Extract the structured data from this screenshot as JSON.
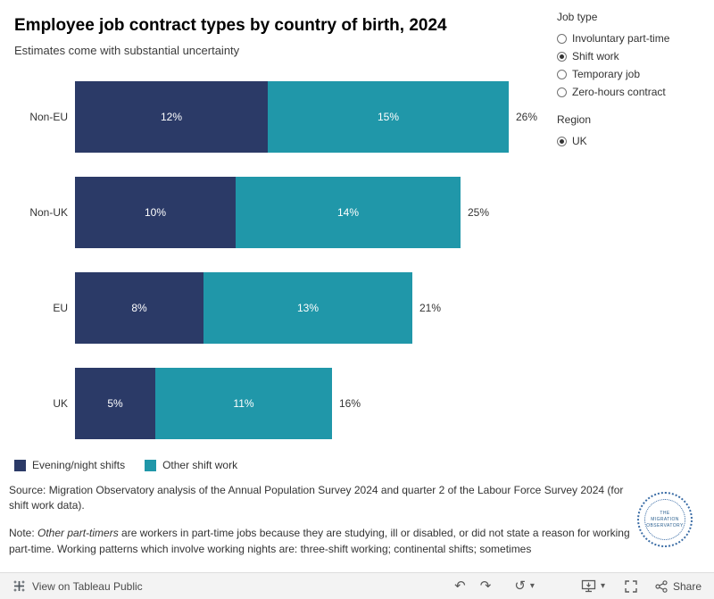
{
  "header": {
    "title": "Employee job contract types by country of birth, 2024",
    "subtitle": "Estimates come with substantial uncertainty"
  },
  "chart_data": {
    "type": "bar",
    "orientation": "horizontal",
    "title": "Employee job contract types by country of birth, 2024",
    "categories": [
      "Non-EU",
      "Non-UK",
      "EU",
      "UK"
    ],
    "series": [
      {
        "name": "Evening/night shifts",
        "color": "#2b3a67",
        "values": [
          12,
          10,
          8,
          5
        ]
      },
      {
        "name": "Other shift work",
        "color": "#2097a9",
        "values": [
          15,
          14,
          13,
          11
        ]
      }
    ],
    "totals": [
      26,
      25,
      21,
      16
    ],
    "value_suffix": "%",
    "xlim": [
      0,
      26
    ],
    "grid": false,
    "legend_position": "bottom-left"
  },
  "filters": {
    "job_type": {
      "label": "Job type",
      "options": [
        {
          "label": "Involuntary part-time",
          "selected": false
        },
        {
          "label": "Shift work",
          "selected": true
        },
        {
          "label": "Temporary job",
          "selected": false
        },
        {
          "label": "Zero-hours contract",
          "selected": false
        }
      ]
    },
    "region": {
      "label": "Region",
      "options": [
        {
          "label": "UK",
          "selected": true
        }
      ]
    }
  },
  "legend": [
    {
      "label": "Evening/night shifts",
      "color": "#2b3a67"
    },
    {
      "label": "Other shift work",
      "color": "#2097a9"
    }
  ],
  "footer": {
    "source": "Source: Migration Observatory analysis of the Annual Population Survey 2024 and quarter 2 of the Labour Force Survey 2024 (for shift work data).",
    "note_prefix": "Note: ",
    "note_italic": "Other part-timers",
    "note_rest": " are workers in part-time jobs because they are studying, ill or disabled, or did not state a reason for working part-time. Working patterns which involve working nights are: three-shift working; continental shifts; sometimes",
    "logo_lines": [
      "THE",
      "MIGRATION",
      "OBSERVATORY"
    ]
  },
  "toolbar": {
    "view_label": "View on Tableau Public",
    "share_label": "Share",
    "undo_glyph": "↶",
    "redo_glyph": "↷",
    "replay_glyph": "↺",
    "caret_glyph": "▾"
  }
}
